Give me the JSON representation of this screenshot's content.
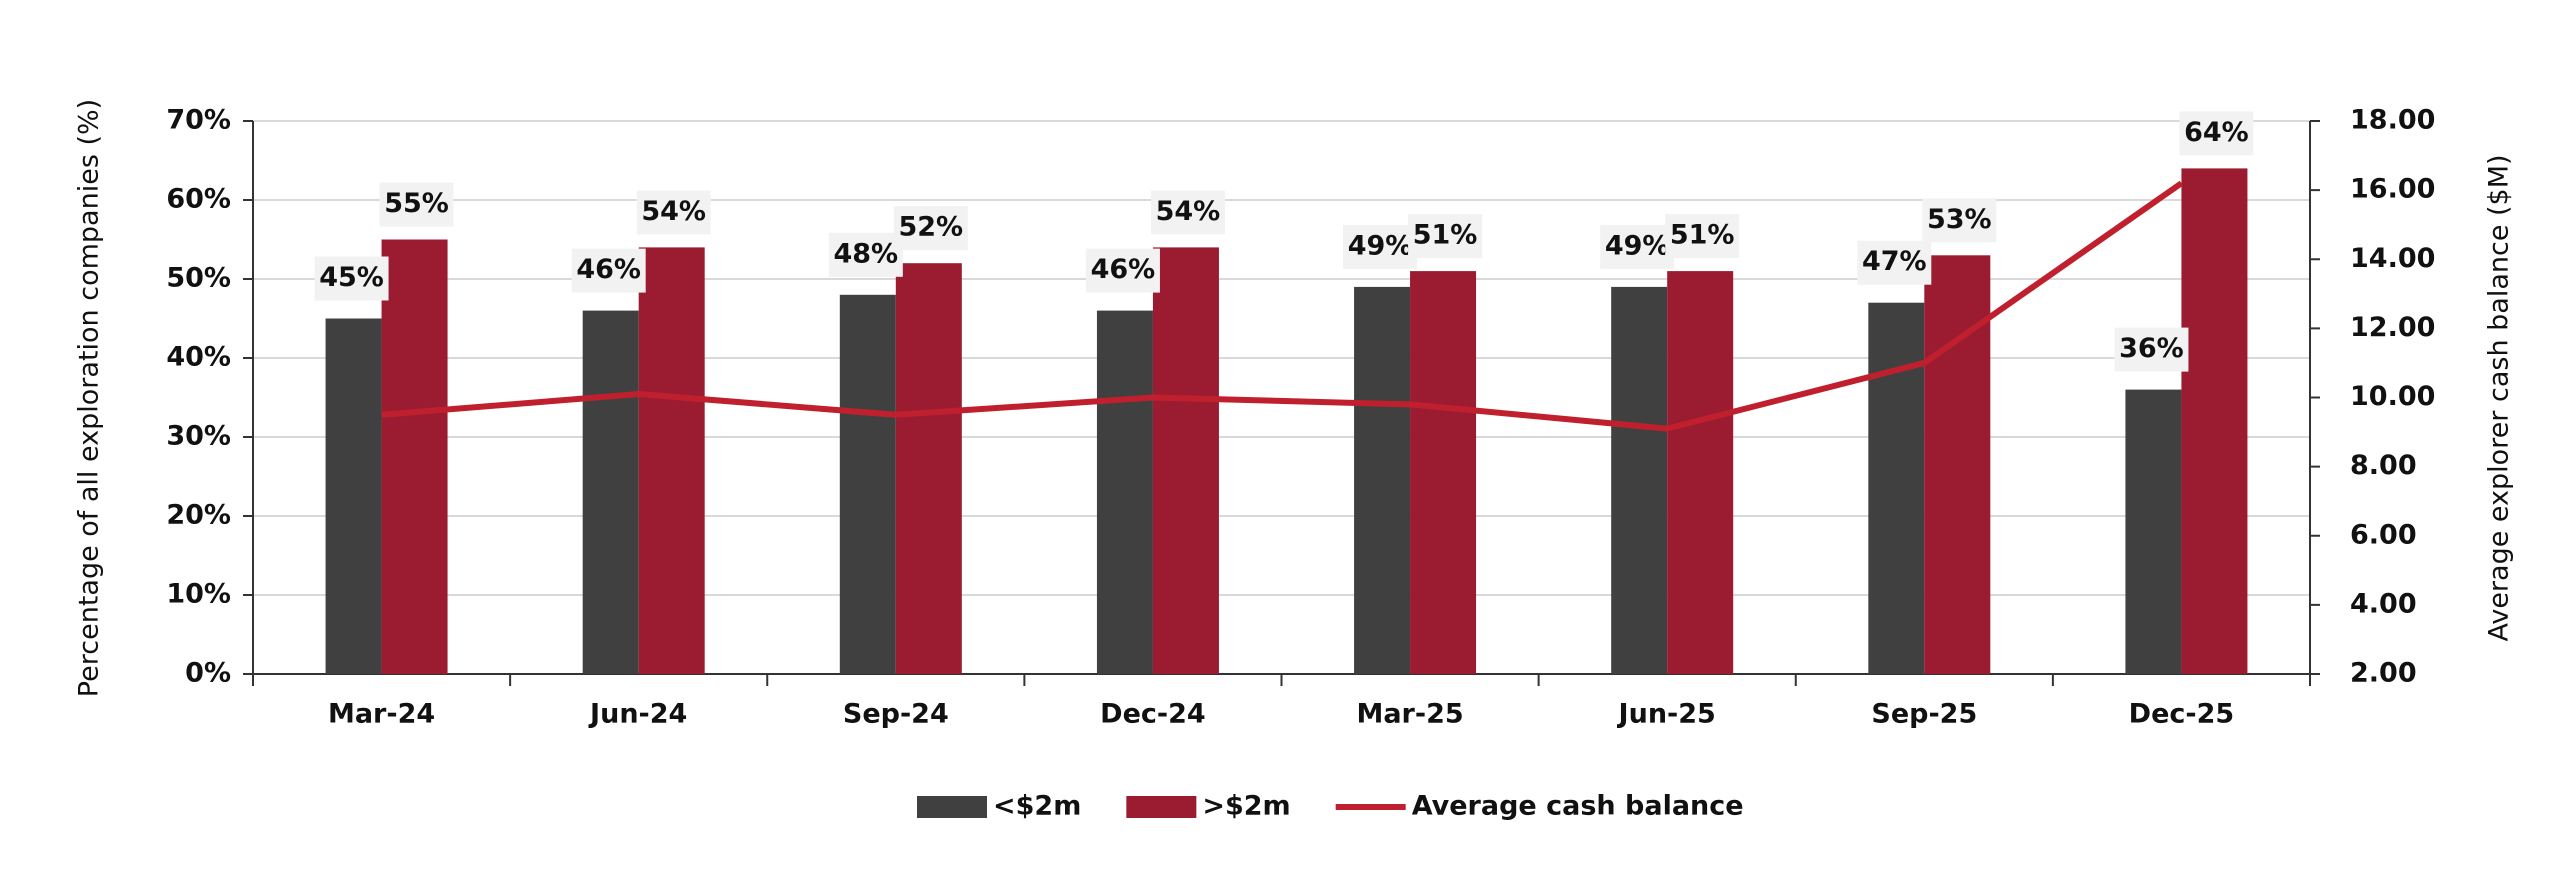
{
  "chart_data": {
    "type": "bar-line",
    "y_label": "Percentage of all exploration companies (%)",
    "y2_label": "Average explorer cash balance ($M)",
    "categories": [
      "Mar-24",
      "Jun-24",
      "Sep-24",
      "Dec-24",
      "Mar-25",
      "Jun-25",
      "Sep-25",
      "Dec-25"
    ],
    "series": [
      {
        "name": "<$2m",
        "type": "bar",
        "color": "#404040",
        "values": [
          45,
          46,
          48,
          46,
          49,
          49,
          47,
          36
        ],
        "value_labels": [
          "45%",
          "46%",
          "48%",
          "46%",
          "49%",
          "49%",
          "47%",
          "36%"
        ]
      },
      {
        "name": ">$2m",
        "type": "bar",
        "color": "#9b1b30",
        "values": [
          55,
          54,
          52,
          54,
          51,
          51,
          53,
          64
        ],
        "value_labels": [
          "55%",
          "54%",
          "52%",
          "54%",
          "51%",
          "51%",
          "53%",
          "64%"
        ]
      },
      {
        "name": "Average cash balance",
        "type": "line",
        "axis": "y2",
        "color": "#c0202e",
        "values": [
          9.5,
          10.1,
          9.5,
          10.0,
          9.8,
          9.1,
          11.0,
          16.2
        ]
      }
    ],
    "ylim": [
      0,
      70
    ],
    "yticks": [
      {
        "value": 0,
        "label": "0%"
      },
      {
        "value": 10,
        "label": "10%"
      },
      {
        "value": 20,
        "label": "20%"
      },
      {
        "value": 30,
        "label": "30%"
      },
      {
        "value": 40,
        "label": "40%"
      },
      {
        "value": 50,
        "label": "50%"
      },
      {
        "value": 60,
        "label": "60%"
      },
      {
        "value": 70,
        "label": "70%"
      }
    ],
    "y2lim": [
      2,
      18
    ],
    "y2ticks": [
      {
        "value": 2,
        "label": "2.00"
      },
      {
        "value": 4,
        "label": "4.00"
      },
      {
        "value": 6,
        "label": "6.00"
      },
      {
        "value": 8,
        "label": "8.00"
      },
      {
        "value": 10,
        "label": "10.00"
      },
      {
        "value": 12,
        "label": "12.00"
      },
      {
        "value": 14,
        "label": "14.00"
      },
      {
        "value": 16,
        "label": "16.00"
      },
      {
        "value": 18,
        "label": "18.00"
      }
    ],
    "grid": true,
    "legend": "bottom"
  }
}
